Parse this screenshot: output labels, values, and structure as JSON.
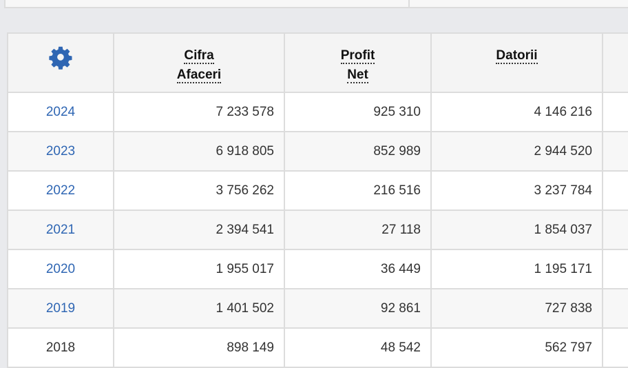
{
  "colors": {
    "accent": "#2f66b3",
    "background": "#e9eaed"
  },
  "header": {
    "settings_icon": "gear-icon",
    "columns": [
      {
        "line1": "Cifra",
        "line2": "Afaceri"
      },
      {
        "line1": "Profit",
        "line2": "Net"
      },
      {
        "line1": "Datorii",
        "line2": ""
      }
    ]
  },
  "rows": [
    {
      "year": "2024",
      "cifra": "7 233 578",
      "profit": "925 310",
      "datorii": "4 146 216"
    },
    {
      "year": "2023",
      "cifra": "6 918 805",
      "profit": "852 989",
      "datorii": "2 944 520"
    },
    {
      "year": "2022",
      "cifra": "3 756 262",
      "profit": "216 516",
      "datorii": "3 237 784"
    },
    {
      "year": "2021",
      "cifra": "2 394 541",
      "profit": "27 118",
      "datorii": "1 854 037"
    },
    {
      "year": "2020",
      "cifra": "1 955 017",
      "profit": "36 449",
      "datorii": "1 195 171"
    },
    {
      "year": "2019",
      "cifra": "1 401 502",
      "profit": "92 861",
      "datorii": "727 838"
    },
    {
      "year": "2018",
      "cifra": "898 149",
      "profit": "48 542",
      "datorii": "562 797"
    }
  ]
}
